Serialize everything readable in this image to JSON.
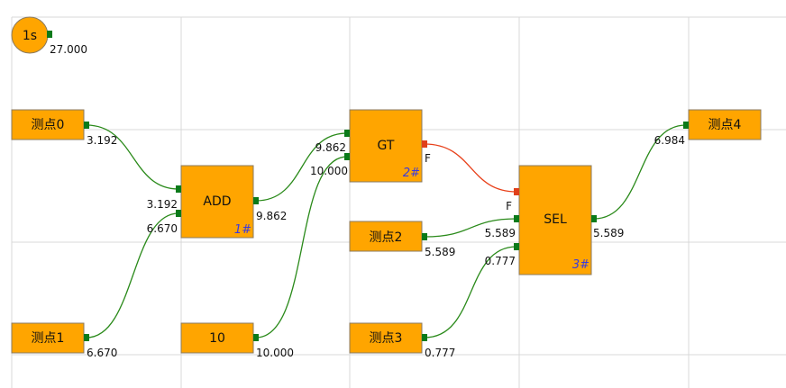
{
  "timer": {
    "label": "1s",
    "output": "27.000"
  },
  "nodes": [
    {
      "label": "测点0",
      "output": "3.192"
    },
    {
      "label": "测点1",
      "output": "6.670"
    },
    {
      "label": "ADD",
      "id": "1#",
      "inputs": [
        "3.192",
        "6.670"
      ],
      "output": "9.862"
    },
    {
      "label": "10",
      "output": "10.000"
    },
    {
      "label": "GT",
      "id": "2#",
      "inputs": [
        "9.862",
        "10.000"
      ],
      "output": "F"
    },
    {
      "label": "测点2",
      "output": "5.589"
    },
    {
      "label": "测点3",
      "output": "0.777"
    },
    {
      "label": "SEL",
      "id": "3#",
      "inputs": [
        "F",
        "5.589",
        "0.777"
      ],
      "output": "5.589"
    },
    {
      "label": "测点4",
      "inputs": [
        "6.984"
      ]
    }
  ]
}
